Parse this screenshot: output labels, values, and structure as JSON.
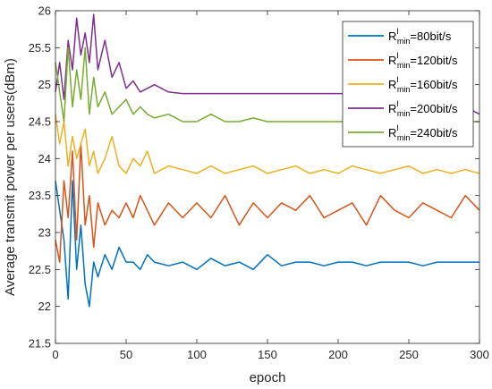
{
  "chart_data": {
    "type": "line",
    "title": "",
    "xlabel": "epoch",
    "ylabel": "Average transmit power per users(dBm)",
    "xlim": [
      0,
      300
    ],
    "ylim": [
      21.5,
      26
    ],
    "xticks": [
      0,
      50,
      100,
      150,
      200,
      250,
      300
    ],
    "yticks": [
      21.5,
      22,
      22.5,
      23,
      23.5,
      24,
      24.5,
      25,
      25.5,
      26
    ],
    "xtick_labels": [
      "0",
      "50",
      "100",
      "150",
      "200",
      "250",
      "300"
    ],
    "ytick_labels": [
      "21.5",
      "22",
      "22.5",
      "23",
      "23.5",
      "24",
      "24.5",
      "25",
      "25.5",
      "26"
    ],
    "grid": false,
    "legend_position": "top-right",
    "series": [
      {
        "name": "80bit/s",
        "legend": {
          "base": "R",
          "sup": "I",
          "sub": "min",
          "suffix": "=80bit/s"
        },
        "color": "#0072BD",
        "x": [
          0,
          3,
          6,
          9,
          12,
          15,
          18,
          21,
          24,
          27,
          30,
          35,
          40,
          45,
          50,
          55,
          60,
          65,
          70,
          80,
          90,
          100,
          110,
          120,
          130,
          140,
          150,
          160,
          170,
          180,
          190,
          200,
          210,
          220,
          230,
          240,
          250,
          260,
          270,
          280,
          290,
          300
        ],
        "y": [
          23.7,
          23.3,
          22.9,
          22.1,
          23.7,
          22.5,
          23.1,
          22.3,
          22.0,
          22.6,
          22.4,
          22.7,
          22.5,
          22.8,
          22.6,
          22.6,
          22.5,
          22.7,
          22.6,
          22.55,
          22.6,
          22.5,
          22.65,
          22.55,
          22.6,
          22.5,
          22.7,
          22.55,
          22.6,
          22.6,
          22.55,
          22.6,
          22.6,
          22.55,
          22.6,
          22.6,
          22.6,
          22.55,
          22.6,
          22.6,
          22.6,
          22.6
        ]
      },
      {
        "name": "120bit/s",
        "legend": {
          "base": "R",
          "sup": "I",
          "sub": "min",
          "suffix": "=120bit/s"
        },
        "color": "#D95319",
        "x": [
          0,
          3,
          6,
          9,
          12,
          15,
          18,
          21,
          24,
          27,
          30,
          35,
          40,
          45,
          50,
          55,
          60,
          65,
          70,
          80,
          90,
          100,
          110,
          120,
          130,
          140,
          150,
          160,
          170,
          180,
          190,
          200,
          210,
          220,
          230,
          240,
          250,
          260,
          270,
          280,
          290,
          300
        ],
        "y": [
          22.9,
          22.6,
          23.7,
          23.2,
          24.1,
          22.9,
          24.2,
          23.1,
          23.5,
          22.8,
          23.4,
          23.1,
          23.3,
          23.2,
          23.4,
          23.2,
          23.5,
          23.3,
          23.1,
          23.4,
          23.2,
          23.4,
          23.2,
          23.5,
          23.1,
          23.4,
          23.2,
          23.4,
          23.3,
          23.5,
          23.2,
          23.3,
          23.4,
          23.1,
          23.5,
          23.3,
          23.2,
          23.4,
          23.3,
          23.2,
          23.5,
          23.3
        ]
      },
      {
        "name": "160bit/s",
        "legend": {
          "base": "R",
          "sup": "I",
          "sub": "min",
          "suffix": "=160bit/s"
        },
        "color": "#EDB120",
        "x": [
          0,
          3,
          6,
          9,
          12,
          15,
          18,
          21,
          24,
          27,
          30,
          35,
          40,
          45,
          50,
          55,
          60,
          65,
          70,
          80,
          90,
          100,
          110,
          120,
          130,
          140,
          150,
          160,
          170,
          180,
          190,
          200,
          210,
          220,
          230,
          240,
          250,
          260,
          270,
          280,
          290,
          300
        ],
        "y": [
          24.6,
          24.2,
          24.5,
          23.9,
          24.3,
          24.0,
          24.2,
          24.4,
          23.9,
          24.1,
          23.8,
          24.0,
          24.3,
          23.9,
          23.8,
          24.0,
          23.9,
          24.1,
          23.8,
          23.9,
          23.85,
          23.8,
          23.9,
          23.8,
          23.85,
          23.9,
          23.8,
          23.85,
          23.9,
          23.8,
          23.85,
          23.8,
          23.9,
          23.85,
          23.8,
          23.85,
          23.9,
          23.8,
          23.85,
          23.8,
          23.85,
          23.8
        ]
      },
      {
        "name": "200bit/s",
        "legend": {
          "base": "R",
          "sup": "I",
          "sub": "min",
          "suffix": "=200bit/s"
        },
        "color": "#7E2F8E",
        "x": [
          0,
          3,
          6,
          9,
          12,
          15,
          18,
          21,
          24,
          27,
          30,
          35,
          40,
          45,
          50,
          55,
          60,
          65,
          70,
          80,
          90,
          100,
          110,
          120,
          130,
          140,
          150,
          160,
          170,
          180,
          190,
          200,
          210,
          220,
          230,
          240,
          250,
          260,
          270,
          280,
          290,
          295,
          300
        ],
        "y": [
          24.9,
          25.3,
          24.8,
          25.6,
          25.2,
          25.9,
          25.4,
          25.7,
          25.3,
          25.95,
          25.2,
          25.6,
          25.1,
          25.3,
          24.95,
          25.05,
          24.9,
          24.95,
          25.0,
          24.9,
          24.88,
          24.88,
          24.88,
          24.88,
          24.88,
          24.88,
          24.88,
          24.88,
          24.88,
          24.88,
          24.88,
          24.88,
          24.88,
          24.88,
          24.88,
          24.88,
          24.88,
          24.88,
          24.88,
          24.88,
          24.88,
          24.65,
          24.6
        ]
      },
      {
        "name": "240bit/s",
        "legend": {
          "base": "R",
          "sup": "I",
          "sub": "min",
          "suffix": "=240bit/s"
        },
        "color": "#77AC30",
        "x": [
          0,
          3,
          6,
          9,
          12,
          15,
          18,
          21,
          24,
          27,
          30,
          35,
          40,
          45,
          50,
          55,
          60,
          65,
          70,
          80,
          90,
          100,
          110,
          120,
          130,
          140,
          150,
          160,
          170,
          180,
          190,
          200,
          210,
          220,
          230,
          240,
          250,
          260,
          270,
          280,
          290,
          300
        ],
        "y": [
          25.3,
          24.9,
          24.5,
          25.5,
          24.7,
          25.2,
          24.8,
          25.5,
          24.6,
          25.1,
          24.7,
          24.9,
          24.6,
          24.7,
          24.8,
          24.6,
          24.7,
          24.6,
          24.55,
          24.6,
          24.5,
          24.5,
          24.6,
          24.5,
          24.5,
          24.55,
          24.5,
          24.5,
          24.5,
          24.5,
          24.5,
          24.5,
          24.5,
          24.5,
          24.5,
          24.5,
          24.5,
          24.5,
          24.5,
          24.5,
          24.5,
          24.5
        ]
      }
    ]
  }
}
